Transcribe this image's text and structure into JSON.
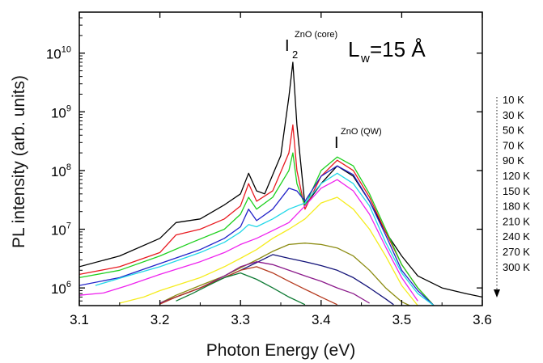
{
  "chart_data": {
    "type": "line",
    "xlabel": "Photon Energy (eV)",
    "ylabel": "PL intensity (arb. units)",
    "xlim": [
      3.1,
      3.6
    ],
    "ylim": [
      500000,
      50000000000
    ],
    "yscale": "log",
    "xticks": [
      "3.1",
      "3.2",
      "3.3",
      "3.4",
      "3.5",
      "3.6"
    ],
    "yticks": [
      {
        "value": 1000000,
        "mant": "10",
        "exp": "6"
      },
      {
        "value": 10000000,
        "mant": "10",
        "exp": "7"
      },
      {
        "value": 100000000,
        "mant": "10",
        "exp": "8"
      },
      {
        "value": 1000000000,
        "mant": "10",
        "exp": "9"
      },
      {
        "value": 10000000000,
        "mant": "10",
        "exp": "10"
      }
    ],
    "annotations": {
      "core_peak": {
        "base": "I",
        "sub": "2",
        "sup": "ZnO (core)"
      },
      "qw_peak": {
        "base": "I",
        "sup": "ZnO (QW)"
      },
      "lw_label": {
        "main": "L",
        "sub": "w",
        "rest": "=15 Å"
      }
    },
    "grid": false,
    "legend_position": "right",
    "series": [
      {
        "name": "10 K",
        "color": "#000000",
        "x": [
          3.1,
          3.15,
          3.2,
          3.22,
          3.25,
          3.28,
          3.3,
          3.31,
          3.32,
          3.33,
          3.35,
          3.36,
          3.365,
          3.37,
          3.38,
          3.4,
          3.42,
          3.44,
          3.46,
          3.48,
          3.5,
          3.52,
          3.55,
          3.58,
          3.6
        ],
        "y": [
          2300000,
          3500000,
          7000000,
          13000000,
          15000000,
          26000000,
          40000000,
          90000000,
          45000000,
          40000000,
          180000000,
          1800000000,
          7000000000,
          600000000,
          25000000,
          60000000,
          120000000,
          80000000,
          30000000,
          9000000,
          3500000,
          1600000,
          1000000,
          800000,
          700000
        ]
      },
      {
        "name": "30 K",
        "color": "#e8191f",
        "x": [
          3.1,
          3.15,
          3.2,
          3.22,
          3.25,
          3.28,
          3.3,
          3.31,
          3.32,
          3.34,
          3.36,
          3.365,
          3.37,
          3.38,
          3.4,
          3.42,
          3.44,
          3.46,
          3.48,
          3.5,
          3.52,
          3.54
        ],
        "y": [
          1700000,
          2300000,
          4000000,
          8000000,
          10000000,
          15000000,
          25000000,
          60000000,
          30000000,
          45000000,
          200000000,
          600000000,
          100000000,
          22000000,
          80000000,
          150000000,
          100000000,
          35000000,
          9000000,
          2500000,
          1000000,
          500000
        ]
      },
      {
        "name": "50 K",
        "color": "#1ed01e",
        "x": [
          3.1,
          3.15,
          3.2,
          3.24,
          3.28,
          3.3,
          3.31,
          3.32,
          3.34,
          3.36,
          3.365,
          3.37,
          3.38,
          3.4,
          3.42,
          3.44,
          3.46,
          3.48,
          3.5,
          3.52,
          3.54
        ],
        "y": [
          1500000,
          2000000,
          3500000,
          6000000,
          10000000,
          18000000,
          35000000,
          22000000,
          35000000,
          100000000,
          200000000,
          60000000,
          25000000,
          100000000,
          170000000,
          120000000,
          40000000,
          10000000,
          2500000,
          1000000,
          500000
        ]
      },
      {
        "name": "70 K",
        "color": "#2222c8",
        "x": [
          3.1,
          3.15,
          3.2,
          3.25,
          3.28,
          3.3,
          3.31,
          3.32,
          3.34,
          3.36,
          3.37,
          3.38,
          3.4,
          3.42,
          3.44,
          3.46,
          3.48,
          3.5,
          3.52,
          3.54
        ],
        "y": [
          1100000,
          1500000,
          2600000,
          4500000,
          7000000,
          11000000,
          22000000,
          14000000,
          22000000,
          50000000,
          45000000,
          30000000,
          80000000,
          120000000,
          85000000,
          30000000,
          8000000,
          2000000,
          900000,
          500000
        ]
      },
      {
        "name": "90 K",
        "color": "#22d8e8",
        "x": [
          3.12,
          3.16,
          3.2,
          3.25,
          3.28,
          3.3,
          3.31,
          3.32,
          3.34,
          3.36,
          3.38,
          3.4,
          3.42,
          3.44,
          3.46,
          3.48,
          3.5,
          3.52,
          3.54
        ],
        "y": [
          1100000,
          1600000,
          2300000,
          4000000,
          6000000,
          9000000,
          12000000,
          11000000,
          15000000,
          22000000,
          28000000,
          60000000,
          90000000,
          60000000,
          25000000,
          6000000,
          1800000,
          800000,
          500000
        ]
      },
      {
        "name": "120 K",
        "color": "#ee22ee",
        "x": [
          3.1,
          3.13,
          3.16,
          3.2,
          3.25,
          3.28,
          3.3,
          3.32,
          3.34,
          3.36,
          3.38,
          3.4,
          3.42,
          3.44,
          3.46,
          3.48,
          3.5,
          3.52
        ],
        "y": [
          750000,
          820000,
          1100000,
          1700000,
          2800000,
          4000000,
          5500000,
          7000000,
          9500000,
          13000000,
          25000000,
          50000000,
          70000000,
          45000000,
          18000000,
          5000000,
          1500000,
          600000
        ]
      },
      {
        "name": "150 K",
        "color": "#f5ec1e",
        "x": [
          3.15,
          3.18,
          3.2,
          3.25,
          3.28,
          3.3,
          3.32,
          3.34,
          3.36,
          3.38,
          3.4,
          3.42,
          3.44,
          3.46,
          3.48,
          3.5,
          3.52
        ],
        "y": [
          550000,
          700000,
          900000,
          1500000,
          2300000,
          3200000,
          4500000,
          7000000,
          10000000,
          15000000,
          28000000,
          35000000,
          22000000,
          10000000,
          3500000,
          1100000,
          500000
        ]
      },
      {
        "name": "180 K",
        "color": "#8b8b10",
        "x": [
          3.2,
          3.22,
          3.25,
          3.28,
          3.3,
          3.32,
          3.34,
          3.36,
          3.38,
          3.4,
          3.42,
          3.44,
          3.46,
          3.48,
          3.5,
          3.51
        ],
        "y": [
          550000,
          750000,
          1100000,
          1600000,
          2200000,
          3000000,
          4200000,
          5500000,
          5800000,
          5500000,
          4800000,
          3500000,
          2000000,
          1000000,
          580000,
          500000
        ]
      },
      {
        "name": "210 K",
        "color": "#14147a",
        "x": [
          3.2,
          3.22,
          3.25,
          3.28,
          3.3,
          3.32,
          3.34,
          3.36,
          3.38,
          3.4,
          3.42,
          3.44,
          3.46,
          3.48,
          3.49
        ],
        "y": [
          550000,
          700000,
          1000000,
          1500000,
          2000000,
          2700000,
          3700000,
          3200000,
          2800000,
          2400000,
          2000000,
          1500000,
          1000000,
          650000,
          520000
        ]
      },
      {
        "name": "240 K",
        "color": "#8b1a8b",
        "x": [
          3.2,
          3.22,
          3.25,
          3.28,
          3.3,
          3.32,
          3.34,
          3.36,
          3.38,
          3.4,
          3.42,
          3.44,
          3.46
        ],
        "y": [
          550000,
          700000,
          1000000,
          1600000,
          2300000,
          2800000,
          2500000,
          2000000,
          1600000,
          1300000,
          1000000,
          800000,
          550000
        ]
      },
      {
        "name": "270 K",
        "color": "#b53a1e",
        "x": [
          3.2,
          3.22,
          3.25,
          3.28,
          3.3,
          3.32,
          3.34,
          3.36,
          3.38,
          3.4,
          3.42
        ],
        "y": [
          530000,
          700000,
          1000000,
          1500000,
          2000000,
          2300000,
          1800000,
          1300000,
          950000,
          700000,
          520000
        ]
      },
      {
        "name": "300 K",
        "color": "#0e7a34",
        "x": [
          3.22,
          3.24,
          3.26,
          3.28,
          3.3,
          3.32,
          3.34,
          3.36,
          3.38
        ],
        "y": [
          600000,
          800000,
          1100000,
          1500000,
          1800000,
          1400000,
          1000000,
          700000,
          520000
        ]
      }
    ]
  }
}
